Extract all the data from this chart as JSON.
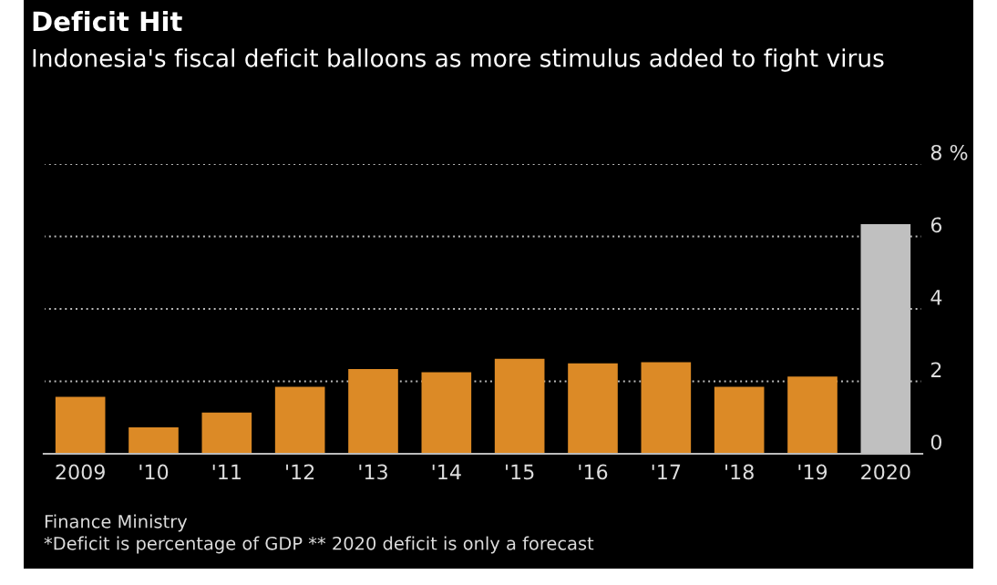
{
  "chart_data": {
    "type": "bar",
    "title": "Deficit Hit",
    "subtitle": "Indonesia's fiscal deficit balloons as more stimulus added to fight virus",
    "categories": [
      "2009",
      "'10",
      "'11",
      "'12",
      "'13",
      "'14",
      "'15",
      "'16",
      "'17",
      "'18",
      "'19",
      "2020"
    ],
    "values": [
      1.57,
      0.73,
      1.14,
      1.85,
      2.34,
      2.25,
      2.62,
      2.5,
      2.53,
      1.85,
      2.13,
      6.34
    ],
    "colors": [
      "#dc8a26",
      "#dc8a26",
      "#dc8a26",
      "#dc8a26",
      "#dc8a26",
      "#dc8a26",
      "#dc8a26",
      "#dc8a26",
      "#dc8a26",
      "#dc8a26",
      "#dc8a26",
      "#c0c0c0"
    ],
    "ylim": [
      0,
      8
    ],
    "yticks": [
      0,
      2,
      4,
      6,
      {
        "value": 8,
        "label": "8 %"
      }
    ],
    "grid": "y",
    "annotations": [
      "Finance Ministry",
      "*Deficit is percentage of GDP ** 2020 deficit is only a forecast"
    ]
  }
}
